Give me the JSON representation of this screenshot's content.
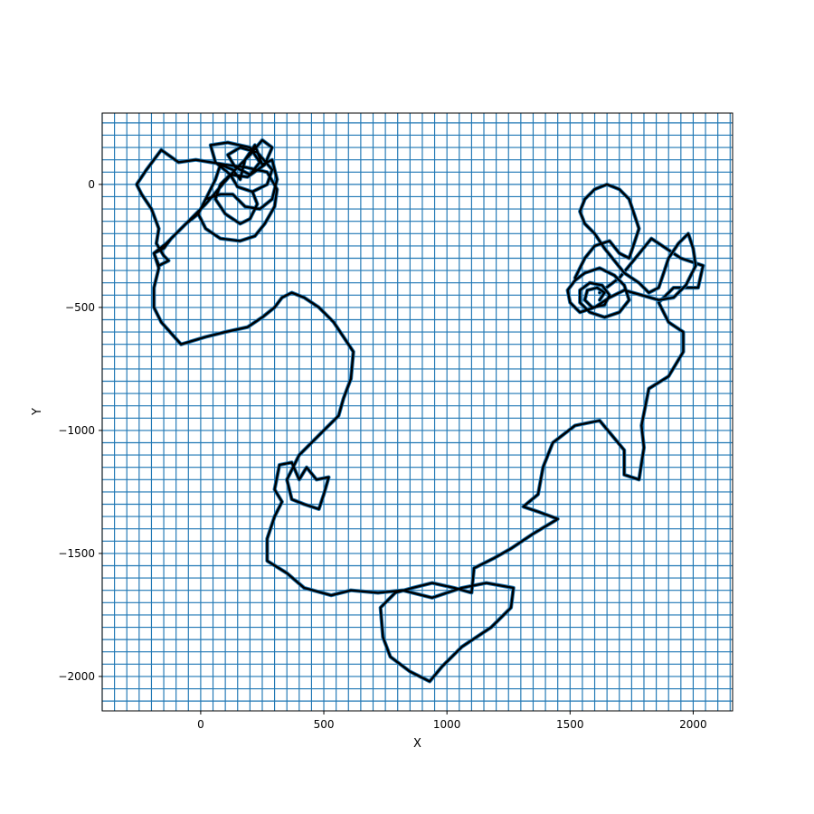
{
  "chart_data": {
    "type": "line",
    "title": "",
    "xlabel": "X",
    "ylabel": "Y",
    "xlim": [
      -400,
      2160
    ],
    "ylim": [
      -2140,
      290
    ],
    "grid": true,
    "grid_color": "#1f77b4",
    "grid_step": {
      "x": 50,
      "y": 50
    },
    "line_color": "#000000",
    "xticks": [
      {
        "value": 0,
        "label": "0"
      },
      {
        "value": 500,
        "label": "500"
      },
      {
        "value": 1000,
        "label": "1000"
      },
      {
        "value": 1500,
        "label": "1500"
      },
      {
        "value": 2000,
        "label": "2000"
      }
    ],
    "yticks": [
      {
        "value": 0,
        "label": "0"
      },
      {
        "value": -500,
        "label": "−500"
      },
      {
        "value": -1000,
        "label": "−1000"
      },
      {
        "value": -1500,
        "label": "−1500"
      },
      {
        "value": -2000,
        "label": "−2000"
      }
    ],
    "series": [
      {
        "path": [
          [
            1620,
            -440
          ],
          [
            1700,
            -380
          ],
          [
            1830,
            -220
          ],
          [
            1950,
            -300
          ],
          [
            2040,
            -330
          ],
          [
            2020,
            -420
          ],
          [
            1920,
            -420
          ],
          [
            1860,
            -480
          ],
          [
            1900,
            -560
          ],
          [
            1960,
            -600
          ],
          [
            1960,
            -680
          ],
          [
            1900,
            -780
          ],
          [
            1820,
            -830
          ],
          [
            1810,
            -880
          ],
          [
            1790,
            -980
          ],
          [
            1800,
            -1070
          ],
          [
            1780,
            -1200
          ],
          [
            1720,
            -1180
          ],
          [
            1720,
            -1080
          ],
          [
            1620,
            -960
          ],
          [
            1520,
            -980
          ],
          [
            1430,
            -1050
          ],
          [
            1390,
            -1150
          ],
          [
            1370,
            -1260
          ],
          [
            1310,
            -1310
          ],
          [
            1370,
            -1330
          ],
          [
            1450,
            -1360
          ],
          [
            1350,
            -1420
          ],
          [
            1260,
            -1480
          ],
          [
            1190,
            -1520
          ],
          [
            1110,
            -1560
          ],
          [
            1100,
            -1660
          ],
          [
            1030,
            -1640
          ],
          [
            940,
            -1620
          ],
          [
            860,
            -1640
          ],
          [
            790,
            -1660
          ],
          [
            730,
            -1720
          ],
          [
            740,
            -1840
          ],
          [
            770,
            -1920
          ],
          [
            850,
            -1980
          ],
          [
            930,
            -2020
          ],
          [
            980,
            -1960
          ],
          [
            1060,
            -1880
          ],
          [
            1180,
            -1800
          ],
          [
            1260,
            -1720
          ],
          [
            1270,
            -1640
          ],
          [
            1160,
            -1620
          ],
          [
            1060,
            -1640
          ],
          [
            940,
            -1680
          ],
          [
            820,
            -1650
          ],
          [
            720,
            -1660
          ],
          [
            610,
            -1650
          ],
          [
            530,
            -1670
          ],
          [
            420,
            -1640
          ],
          [
            350,
            -1580
          ],
          [
            270,
            -1530
          ],
          [
            270,
            -1440
          ],
          [
            300,
            -1350
          ],
          [
            330,
            -1290
          ],
          [
            300,
            -1240
          ],
          [
            320,
            -1140
          ],
          [
            370,
            -1130
          ],
          [
            400,
            -1200
          ],
          [
            430,
            -1150
          ],
          [
            470,
            -1200
          ],
          [
            520,
            -1190
          ],
          [
            500,
            -1260
          ],
          [
            480,
            -1320
          ],
          [
            420,
            -1300
          ],
          [
            370,
            -1280
          ],
          [
            350,
            -1200
          ],
          [
            400,
            -1100
          ],
          [
            450,
            -1050
          ],
          [
            500,
            -1000
          ],
          [
            560,
            -940
          ],
          [
            580,
            -870
          ],
          [
            610,
            -790
          ],
          [
            620,
            -680
          ],
          [
            580,
            -620
          ],
          [
            540,
            -560
          ],
          [
            480,
            -500
          ],
          [
            420,
            -460
          ],
          [
            370,
            -440
          ],
          [
            330,
            -460
          ],
          [
            300,
            -500
          ],
          [
            250,
            -540
          ],
          [
            190,
            -580
          ],
          [
            100,
            -600
          ],
          [
            20,
            -620
          ],
          [
            -80,
            -650
          ],
          [
            -160,
            -560
          ],
          [
            -190,
            -500
          ],
          [
            -190,
            -420
          ],
          [
            -170,
            -340
          ],
          [
            -190,
            -280
          ],
          [
            -150,
            -260
          ],
          [
            -120,
            -220
          ],
          [
            -60,
            -160
          ],
          [
            -10,
            -120
          ],
          [
            30,
            -40
          ],
          [
            60,
            20
          ],
          [
            80,
            80
          ],
          [
            130,
            60
          ],
          [
            160,
            20
          ],
          [
            180,
            100
          ],
          [
            220,
            160
          ],
          [
            250,
            80
          ],
          [
            290,
            100
          ],
          [
            310,
            20
          ],
          [
            290,
            -60
          ],
          [
            240,
            -100
          ],
          [
            180,
            -90
          ],
          [
            130,
            -40
          ],
          [
            80,
            -40
          ],
          [
            20,
            -60
          ],
          [
            -10,
            -120
          ],
          [
            20,
            -180
          ],
          [
            80,
            -220
          ],
          [
            160,
            -230
          ],
          [
            220,
            -210
          ],
          [
            260,
            -160
          ],
          [
            300,
            -90
          ],
          [
            310,
            -20
          ],
          [
            270,
            50
          ],
          [
            180,
            70
          ],
          [
            100,
            80
          ],
          [
            -20,
            100
          ],
          [
            -90,
            90
          ],
          [
            -160,
            140
          ],
          [
            -220,
            60
          ],
          [
            -260,
            0
          ],
          [
            -240,
            -40
          ],
          [
            -200,
            -100
          ],
          [
            -170,
            -180
          ],
          [
            -180,
            -240
          ],
          [
            -150,
            -290
          ],
          [
            -130,
            -310
          ],
          [
            -170,
            -330
          ],
          [
            -190,
            -280
          ],
          [
            -140,
            -240
          ],
          [
            -100,
            -200
          ],
          [
            -50,
            -150
          ],
          [
            20,
            -80
          ],
          [
            80,
            -10
          ],
          [
            140,
            60
          ],
          [
            200,
            120
          ],
          [
            250,
            180
          ],
          [
            290,
            150
          ],
          [
            260,
            80
          ],
          [
            190,
            30
          ],
          [
            120,
            40
          ],
          [
            60,
            90
          ],
          [
            40,
            160
          ],
          [
            110,
            170
          ],
          [
            200,
            150
          ],
          [
            240,
            90
          ],
          [
            200,
            40
          ],
          [
            140,
            70
          ],
          [
            110,
            120
          ],
          [
            160,
            150
          ],
          [
            230,
            130
          ],
          [
            290,
            60
          ],
          [
            270,
            0
          ],
          [
            210,
            -30
          ],
          [
            150,
            -10
          ],
          [
            120,
            40
          ],
          [
            80,
            0
          ],
          [
            60,
            -60
          ],
          [
            100,
            -120
          ],
          [
            160,
            -160
          ],
          [
            200,
            -140
          ],
          [
            230,
            -80
          ],
          [
            210,
            -30
          ]
        ]
      },
      {
        "path": [
          [
            1520,
            -380
          ],
          [
            1560,
            -300
          ],
          [
            1600,
            -250
          ],
          [
            1660,
            -230
          ],
          [
            1700,
            -280
          ],
          [
            1740,
            -300
          ],
          [
            1760,
            -240
          ],
          [
            1780,
            -180
          ],
          [
            1760,
            -120
          ],
          [
            1740,
            -60
          ],
          [
            1700,
            -20
          ],
          [
            1650,
            0
          ],
          [
            1600,
            -20
          ],
          [
            1560,
            -60
          ],
          [
            1540,
            -110
          ],
          [
            1560,
            -160
          ],
          [
            1600,
            -200
          ],
          [
            1640,
            -260
          ],
          [
            1680,
            -310
          ],
          [
            1720,
            -360
          ],
          [
            1780,
            -400
          ],
          [
            1820,
            -440
          ],
          [
            1860,
            -420
          ],
          [
            1880,
            -360
          ],
          [
            1900,
            -300
          ],
          [
            1940,
            -240
          ],
          [
            1980,
            -200
          ],
          [
            2000,
            -260
          ],
          [
            2010,
            -330
          ],
          [
            1970,
            -410
          ],
          [
            1920,
            -460
          ],
          [
            1860,
            -470
          ],
          [
            1790,
            -450
          ],
          [
            1720,
            -430
          ],
          [
            1660,
            -460
          ],
          [
            1600,
            -500
          ],
          [
            1540,
            -520
          ],
          [
            1500,
            -480
          ],
          [
            1490,
            -430
          ],
          [
            1520,
            -390
          ],
          [
            1560,
            -360
          ],
          [
            1620,
            -340
          ],
          [
            1680,
            -370
          ],
          [
            1720,
            -410
          ],
          [
            1740,
            -470
          ],
          [
            1700,
            -520
          ],
          [
            1640,
            -540
          ],
          [
            1580,
            -520
          ],
          [
            1540,
            -480
          ],
          [
            1540,
            -430
          ],
          [
            1580,
            -400
          ],
          [
            1630,
            -410
          ],
          [
            1660,
            -450
          ],
          [
            1640,
            -490
          ],
          [
            1590,
            -500
          ],
          [
            1560,
            -470
          ],
          [
            1570,
            -430
          ],
          [
            1610,
            -420
          ],
          [
            1640,
            -440
          ],
          [
            1620,
            -470
          ]
        ]
      }
    ]
  }
}
